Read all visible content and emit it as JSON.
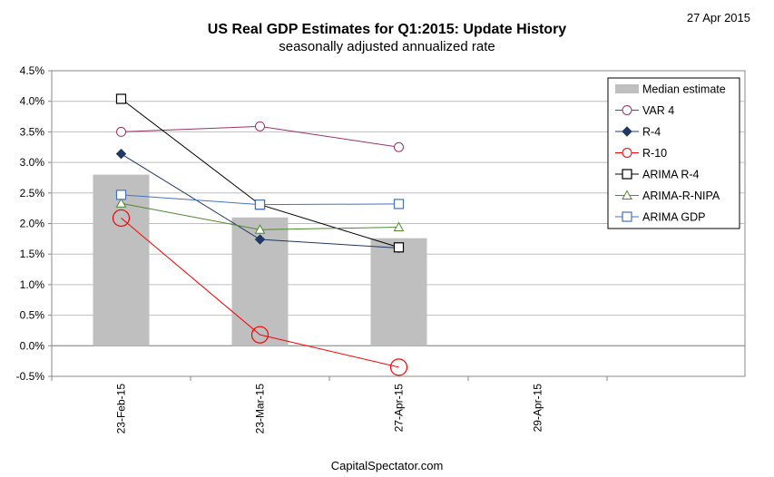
{
  "header": {
    "title": "US Real GDP Estimates for Q1:2015: Update History",
    "subtitle": "seasonally adjusted annualized rate",
    "date": "27 Apr 2015"
  },
  "footer": {
    "source": "CapitalSpectator.com"
  },
  "chart_data": {
    "type": "bar",
    "title": "US Real GDP Estimates for Q1:2015: Update History",
    "subtitle": "seasonally adjusted annualized rate",
    "xlabel": "",
    "ylabel": "",
    "categories": [
      "23-Feb-15",
      "23-Mar-15",
      "27-Apr-15",
      "29-Apr-15"
    ],
    "ylim": [
      -0.5,
      4.5
    ],
    "y_ticks": [
      "-0.5%",
      "0.0%",
      "0.5%",
      "1.0%",
      "1.5%",
      "2.0%",
      "2.5%",
      "3.0%",
      "3.5%",
      "4.0%",
      "4.5%"
    ],
    "grid": true,
    "legend_position": "top-right",
    "series": [
      {
        "name": "Median estimate",
        "kind": "bar",
        "color": "#bfbfbf",
        "values": [
          2.8,
          2.1,
          1.76,
          null
        ]
      },
      {
        "name": "VAR 4",
        "kind": "line",
        "marker": "circle",
        "color": "#993366",
        "values": [
          3.5,
          3.59,
          3.25,
          null
        ]
      },
      {
        "name": "R-4",
        "kind": "line",
        "marker": "diamond",
        "color": "#1f3864",
        "values": [
          3.14,
          1.74,
          1.6,
          null
        ]
      },
      {
        "name": "R-10",
        "kind": "line",
        "marker": "big-circle",
        "color": "#ff0000",
        "values": [
          2.09,
          0.18,
          -0.35,
          null
        ]
      },
      {
        "name": "ARIMA R-4",
        "kind": "line",
        "marker": "square",
        "color": "#000000",
        "values": [
          4.04,
          2.31,
          1.61,
          null
        ]
      },
      {
        "name": "ARIMA-R-NIPA",
        "kind": "line",
        "marker": "triangle",
        "color": "#4f8a2f",
        "values": [
          2.33,
          1.9,
          1.94,
          null
        ]
      },
      {
        "name": "ARIMA GDP",
        "kind": "line",
        "marker": "square",
        "color": "#4472c4",
        "values": [
          2.47,
          2.31,
          2.32,
          null
        ]
      }
    ]
  }
}
